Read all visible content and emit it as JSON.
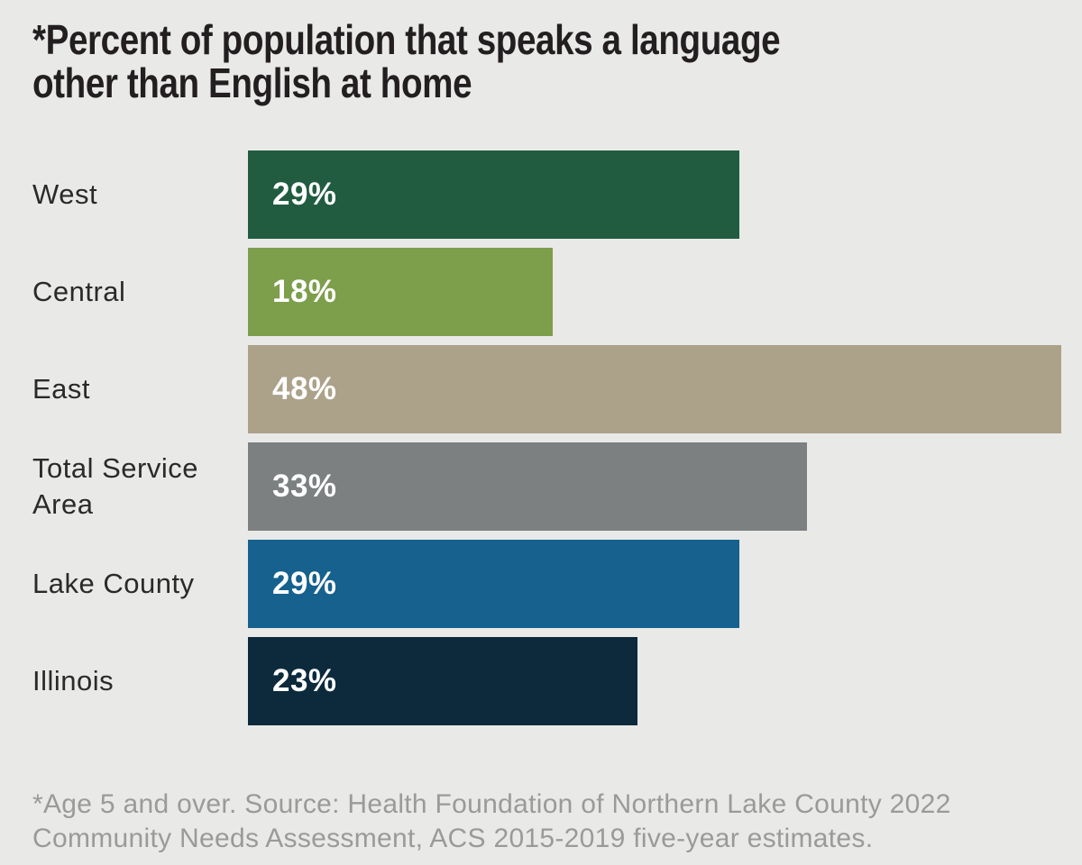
{
  "page": {
    "background_color": "#e9e9e8"
  },
  "title": {
    "lines": [
      "*Percent of population that speaks a language",
      "other than English at home"
    ],
    "color": "#231f20"
  },
  "chart_data": {
    "type": "bar",
    "orientation": "horizontal",
    "title": "*Percent of population that speaks a language other than English at home",
    "categories": [
      "West",
      "Central",
      "East",
      "Total Service Area",
      "Lake County",
      "Illinois"
    ],
    "values": [
      29,
      18,
      48,
      33,
      29,
      23
    ],
    "value_labels": [
      "29%",
      "18%",
      "48%",
      "33%",
      "29%",
      "23%"
    ],
    "bar_colors": [
      "#215c41",
      "#7d9e4b",
      "#aca189",
      "#7c8081",
      "#16618d",
      "#0c2a3b"
    ],
    "unit": "percent",
    "xlim": [
      0,
      49
    ],
    "value_label_position": "inside-left",
    "grid": false,
    "legend": false,
    "axis_ticks": "none"
  },
  "footnote": {
    "lines": [
      "*Age 5 and over. Source: Health Foundation of Northern Lake County 2022",
      "Community Needs Assessment, ACS 2015-2019 five-year estimates."
    ],
    "color": "#9a9a9a"
  }
}
